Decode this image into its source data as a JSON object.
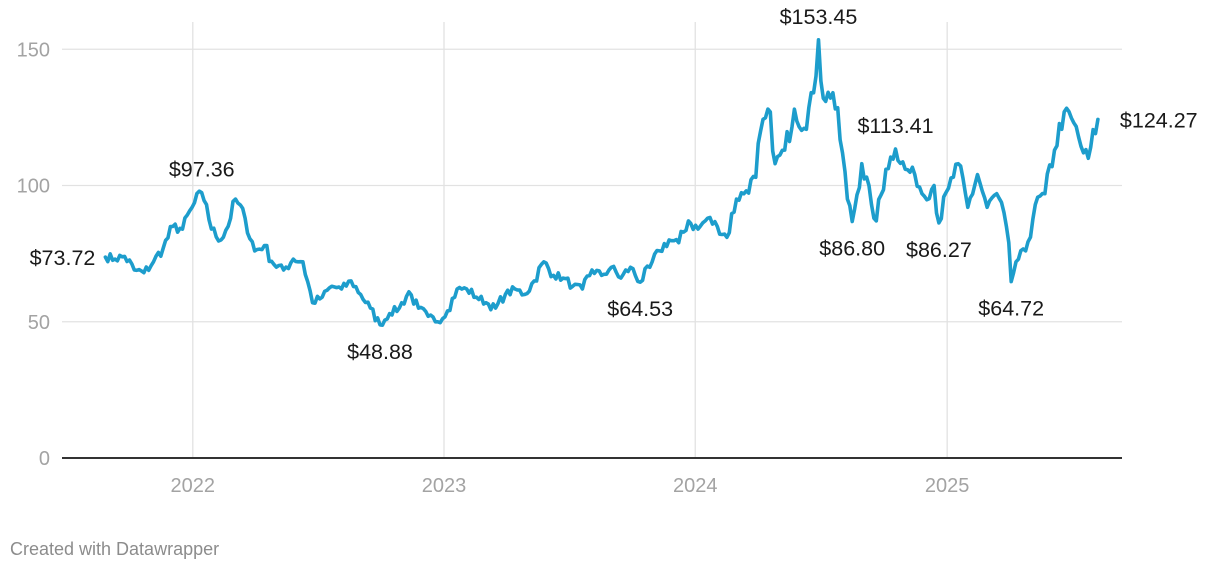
{
  "chart_data": {
    "type": "line",
    "title": "",
    "xlabel": "",
    "ylabel": "",
    "xlim": [
      "2021-06-25",
      "2025-09-12"
    ],
    "ylim": [
      0,
      160
    ],
    "y_ticks": [
      0,
      50,
      100,
      150
    ],
    "x_ticks": [
      {
        "date": "2022-01-01",
        "label": "2022"
      },
      {
        "date": "2023-01-01",
        "label": "2023"
      },
      {
        "date": "2024-01-01",
        "label": "2024"
      },
      {
        "date": "2025-01-01",
        "label": "2025"
      }
    ],
    "grid": true,
    "legend": "none",
    "series": [
      {
        "color": "#1d9dcc",
        "points": [
          [
            "2021-08-27",
            73.72
          ],
          [
            "2021-09-10",
            73.0
          ],
          [
            "2021-09-24",
            74.0
          ],
          [
            "2021-10-08",
            69.0
          ],
          [
            "2021-10-22",
            68.0
          ],
          [
            "2021-11-05",
            72.0
          ],
          [
            "2021-11-19",
            77.0
          ],
          [
            "2021-12-03",
            85.0
          ],
          [
            "2021-12-17",
            84.0
          ],
          [
            "2021-12-31",
            92.0
          ],
          [
            "2022-01-14",
            97.36
          ],
          [
            "2022-01-21",
            93.0
          ],
          [
            "2022-01-28",
            84.0
          ],
          [
            "2022-02-11",
            80.0
          ],
          [
            "2022-02-25",
            88.0
          ],
          [
            "2022-03-04",
            95.0
          ],
          [
            "2022-03-18",
            88.0
          ],
          [
            "2022-04-01",
            76.0
          ],
          [
            "2022-04-15",
            78.0
          ],
          [
            "2022-04-29",
            71.0
          ],
          [
            "2022-05-13",
            69.0
          ],
          [
            "2022-05-27",
            73.0
          ],
          [
            "2022-06-10",
            72.0
          ],
          [
            "2022-06-24",
            57.0
          ],
          [
            "2022-07-08",
            59.0
          ],
          [
            "2022-07-22",
            63.0
          ],
          [
            "2022-08-05",
            62.0
          ],
          [
            "2022-08-19",
            65.0
          ],
          [
            "2022-09-02",
            60.0
          ],
          [
            "2022-09-16",
            55.0
          ],
          [
            "2022-09-30",
            48.88
          ],
          [
            "2022-10-14",
            53.0
          ],
          [
            "2022-10-28",
            55.0
          ],
          [
            "2022-11-11",
            61.0
          ],
          [
            "2022-11-25",
            55.0
          ],
          [
            "2022-12-09",
            52.0
          ],
          [
            "2022-12-23",
            50.0
          ],
          [
            "2023-01-06",
            54.0
          ],
          [
            "2023-01-20",
            62.0
          ],
          [
            "2023-02-03",
            62.0
          ],
          [
            "2023-02-17",
            59.0
          ],
          [
            "2023-03-03",
            57.0
          ],
          [
            "2023-03-17",
            55.0
          ],
          [
            "2023-03-31",
            60.0
          ],
          [
            "2023-04-14",
            62.0
          ],
          [
            "2023-04-28",
            60.0
          ],
          [
            "2023-05-12",
            65.0
          ],
          [
            "2023-05-26",
            72.0
          ],
          [
            "2023-06-09",
            67.0
          ],
          [
            "2023-06-23",
            66.0
          ],
          [
            "2023-07-07",
            63.0
          ],
          [
            "2023-07-21",
            62.0
          ],
          [
            "2023-08-04",
            69.0
          ],
          [
            "2023-08-18",
            67.0
          ],
          [
            "2023-09-01",
            70.0
          ],
          [
            "2023-09-15",
            66.0
          ],
          [
            "2023-09-29",
            70.0
          ],
          [
            "2023-10-13",
            64.53
          ],
          [
            "2023-10-27",
            70.0
          ],
          [
            "2023-11-10",
            76.0
          ],
          [
            "2023-11-24",
            80.0
          ],
          [
            "2023-12-08",
            79.0
          ],
          [
            "2023-12-22",
            87.0
          ],
          [
            "2024-01-05",
            84.0
          ],
          [
            "2024-01-19",
            88.0
          ],
          [
            "2024-02-02",
            85.0
          ],
          [
            "2024-02-16",
            81.0
          ],
          [
            "2024-03-01",
            95.0
          ],
          [
            "2024-03-15",
            98.0
          ],
          [
            "2024-03-29",
            103.0
          ],
          [
            "2024-04-05",
            120.0
          ],
          [
            "2024-04-19",
            127.0
          ],
          [
            "2024-04-26",
            108.0
          ],
          [
            "2024-05-10",
            113.0
          ],
          [
            "2024-05-24",
            128.0
          ],
          [
            "2024-06-07",
            121.0
          ],
          [
            "2024-06-21",
            134.0
          ],
          [
            "2024-06-28",
            153.45
          ],
          [
            "2024-07-05",
            132.0
          ],
          [
            "2024-07-19",
            134.0
          ],
          [
            "2024-08-02",
            112.0
          ],
          [
            "2024-08-09",
            95.0
          ],
          [
            "2024-08-16",
            86.8
          ],
          [
            "2024-08-30",
            108.0
          ],
          [
            "2024-09-13",
            93.0
          ],
          [
            "2024-09-20",
            87.0
          ],
          [
            "2024-10-04",
            106.0
          ],
          [
            "2024-10-18",
            113.41
          ],
          [
            "2024-11-01",
            106.0
          ],
          [
            "2024-11-15",
            104.0
          ],
          [
            "2024-11-29",
            96.0
          ],
          [
            "2024-12-13",
            100.0
          ],
          [
            "2024-12-20",
            86.27
          ],
          [
            "2025-01-03",
            99.0
          ],
          [
            "2025-01-17",
            108.0
          ],
          [
            "2025-01-31",
            92.0
          ],
          [
            "2025-02-14",
            104.0
          ],
          [
            "2025-02-28",
            92.0
          ],
          [
            "2025-03-14",
            97.0
          ],
          [
            "2025-03-28",
            85.0
          ],
          [
            "2025-04-04",
            64.72
          ],
          [
            "2025-04-11",
            72.0
          ],
          [
            "2025-04-25",
            76.0
          ],
          [
            "2025-05-09",
            93.0
          ],
          [
            "2025-05-23",
            97.0
          ],
          [
            "2025-06-06",
            113.0
          ],
          [
            "2025-06-20",
            127.0
          ],
          [
            "2025-07-04",
            123.0
          ],
          [
            "2025-07-18",
            112.0
          ],
          [
            "2025-07-25",
            110.0
          ],
          [
            "2025-08-08",
            124.27
          ]
        ]
      }
    ],
    "annotations": [
      {
        "text": "$73.72",
        "date": "2021-08-27",
        "value": 73.72,
        "placement": "left"
      },
      {
        "text": "$97.36",
        "date": "2022-01-14",
        "value": 97.36,
        "placement": "above"
      },
      {
        "text": "$48.88",
        "date": "2022-09-30",
        "value": 48.88,
        "placement": "below"
      },
      {
        "text": "$64.53",
        "date": "2023-10-13",
        "value": 64.53,
        "placement": "below"
      },
      {
        "text": "$153.45",
        "date": "2024-06-28",
        "value": 153.45,
        "placement": "above"
      },
      {
        "text": "$86.80",
        "date": "2024-08-16",
        "value": 86.8,
        "placement": "below"
      },
      {
        "text": "$113.41",
        "date": "2024-10-18",
        "value": 113.41,
        "placement": "above"
      },
      {
        "text": "$86.27",
        "date": "2024-12-20",
        "value": 86.27,
        "placement": "below"
      },
      {
        "text": "$64.72",
        "date": "2025-04-04",
        "value": 64.72,
        "placement": "below"
      },
      {
        "text": "$124.27",
        "date": "2025-08-08",
        "value": 124.27,
        "placement": "right"
      }
    ]
  },
  "footer": {
    "credit": "Created with Datawrapper"
  }
}
